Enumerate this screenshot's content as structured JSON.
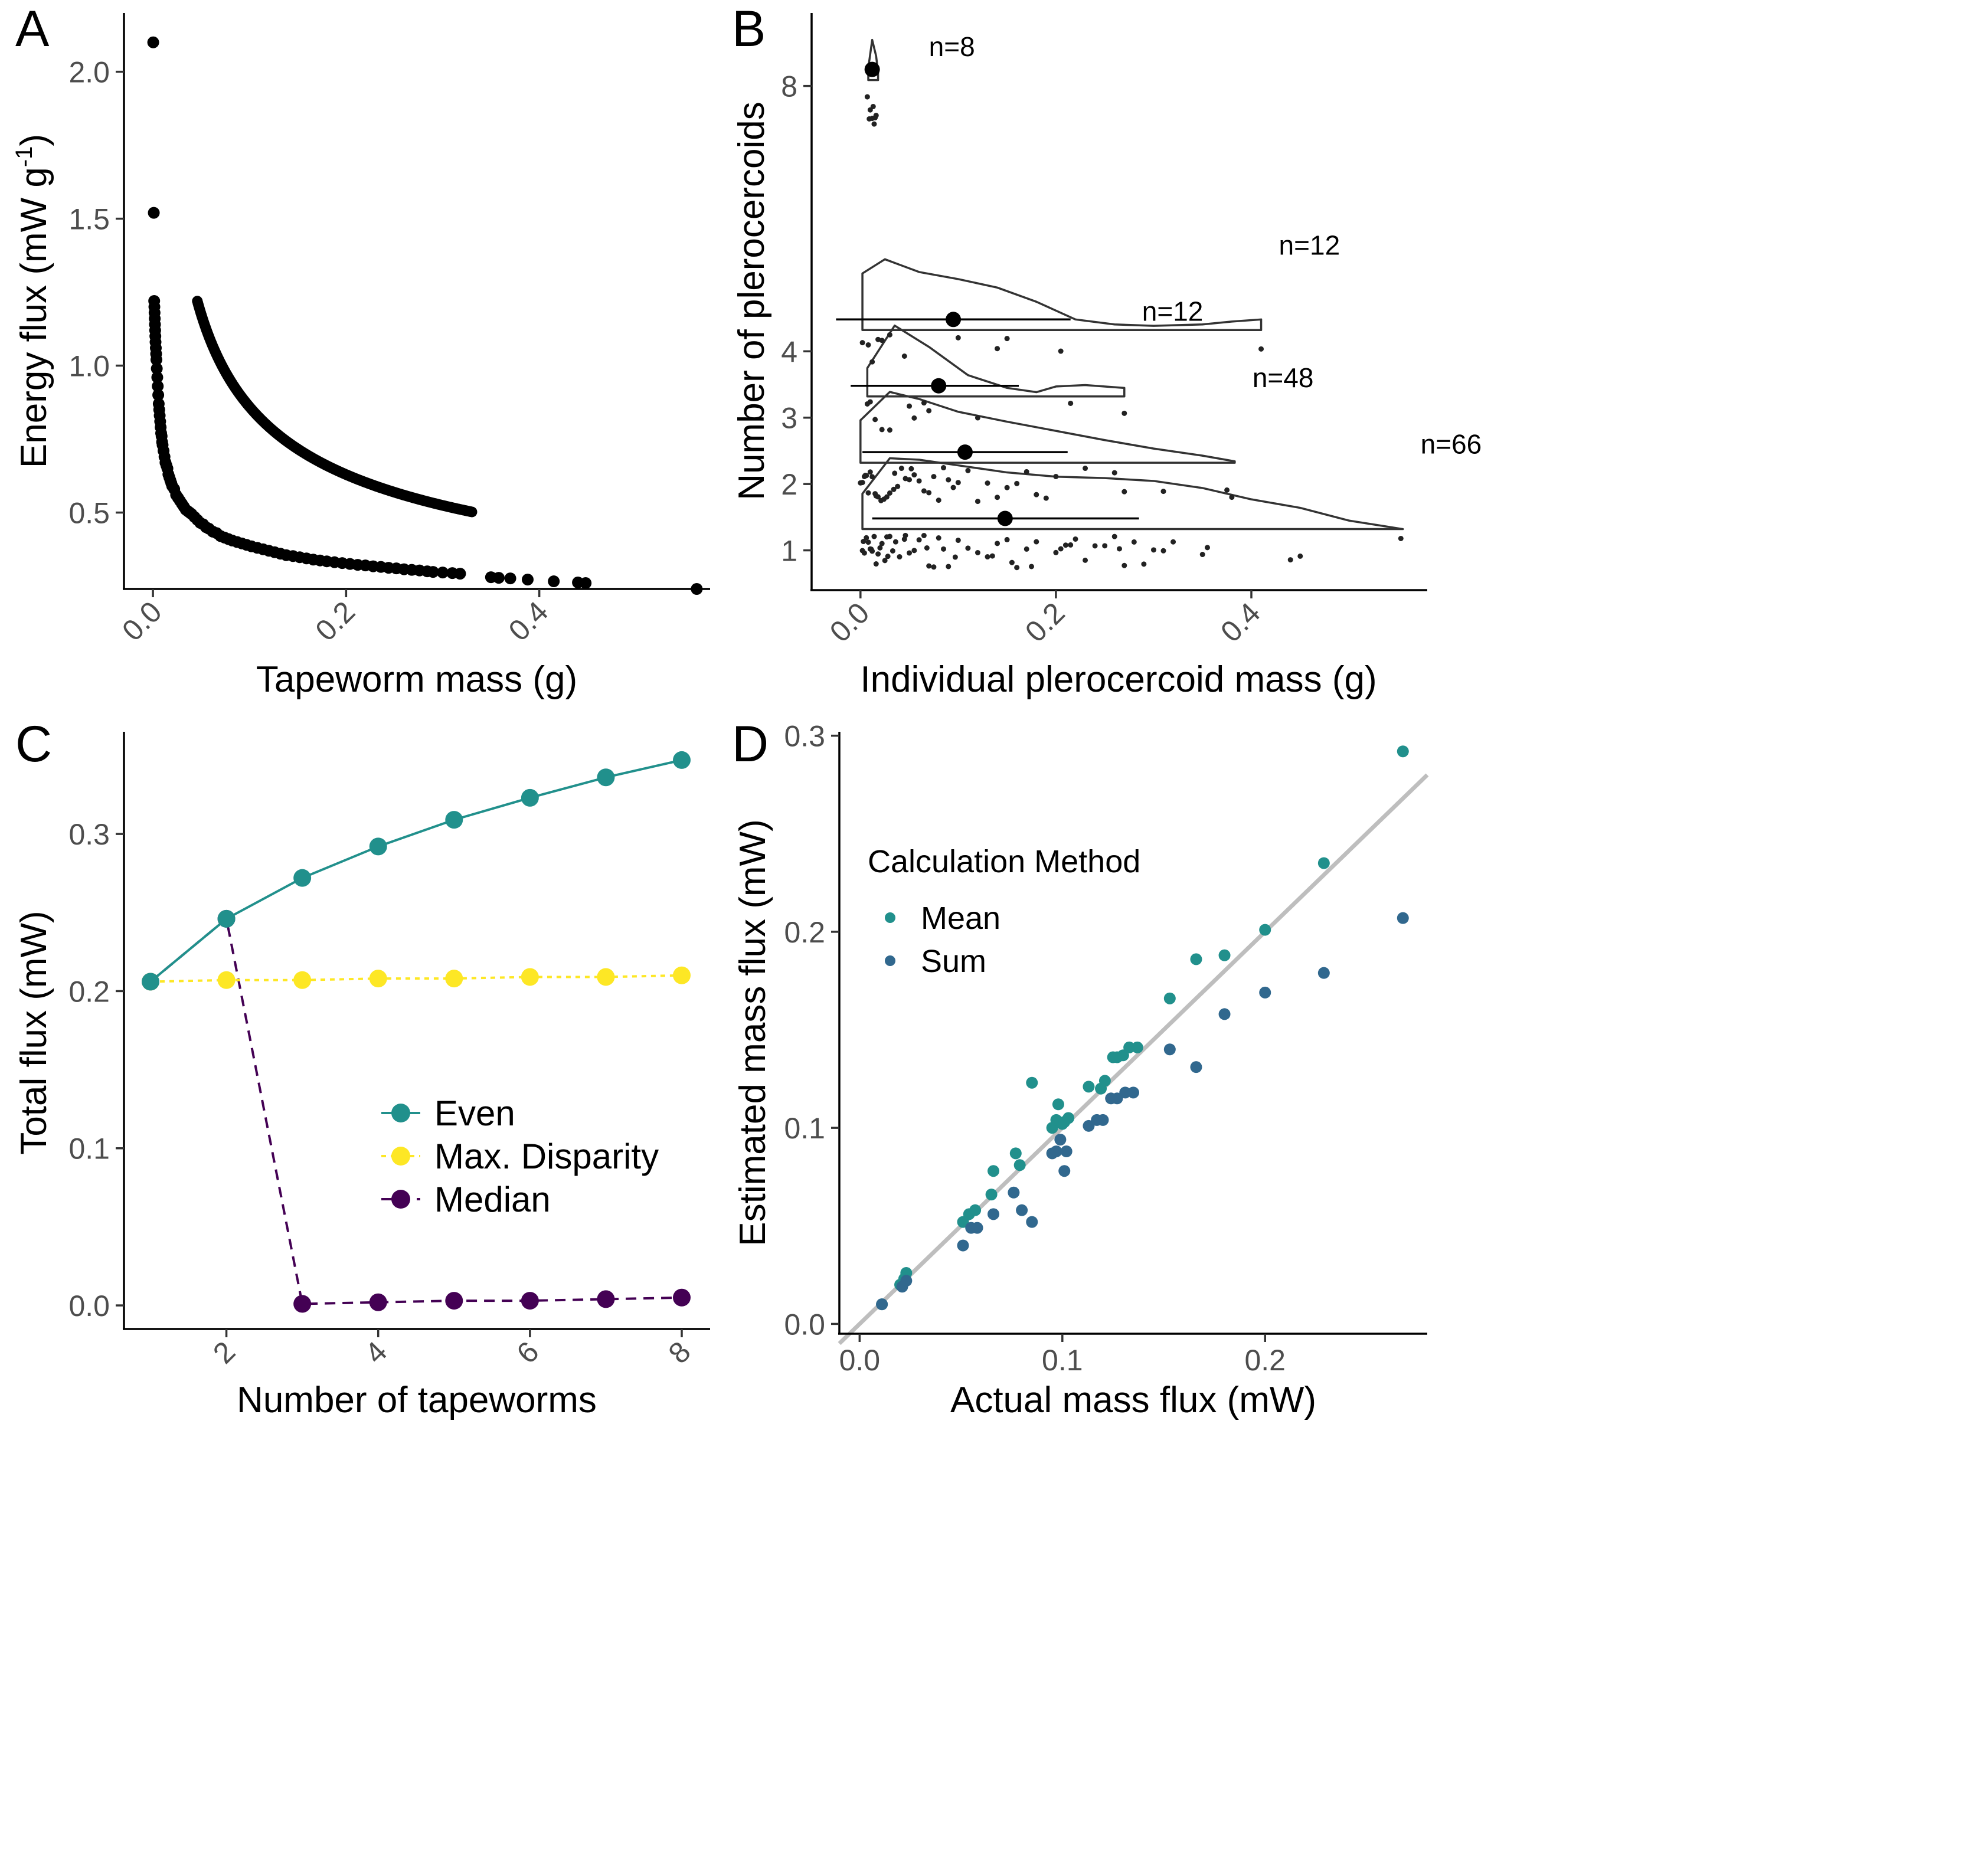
{
  "colors": {
    "even": "#21908C",
    "max_disparity": "#FDE725",
    "median": "#440154",
    "mean": "#21908C",
    "sum": "#31688E",
    "identity_line": "#BEBEBE",
    "points": "#000000"
  },
  "chart_data": [
    {
      "panel": "A",
      "type": "scatter",
      "xlabel": "Tapeworm mass (g)",
      "ylabel_main": "Energy flux (mW g",
      "ylabel_sup": "-1",
      "ylabel_end": ")",
      "xlim": [
        -0.03,
        0.575
      ],
      "ylim": [
        0.24,
        2.2
      ],
      "xticks": [
        0.0,
        0.2,
        0.4
      ],
      "xtick_labels": [
        "0.0",
        "0.2",
        "0.4"
      ],
      "yticks": [
        0.5,
        1.0,
        1.5,
        2.0
      ],
      "ytick_labels": [
        "0.5",
        "1.0",
        "1.5",
        "2.0"
      ],
      "model": {
        "a": 0.305,
        "b": -0.45,
        "relation": "y = a * x^b"
      },
      "x": [
        0.0003,
        0.0009,
        0.0013,
        0.0015,
        0.0017,
        0.0019,
        0.0021,
        0.0023,
        0.0025,
        0.0027,
        0.003,
        0.0033,
        0.0036,
        0.004,
        0.0045,
        0.005,
        0.0055,
        0.006,
        0.0065,
        0.007,
        0.0075,
        0.008,
        0.0085,
        0.009,
        0.0095,
        0.01,
        0.011,
        0.012,
        0.013,
        0.014,
        0.015,
        0.016,
        0.017,
        0.018,
        0.019,
        0.02,
        0.022,
        0.024,
        0.026,
        0.028,
        0.03,
        0.032,
        0.034,
        0.036,
        0.038,
        0.04,
        0.043,
        0.046,
        0.049,
        0.052,
        0.055,
        0.058,
        0.062,
        0.066,
        0.07,
        0.074,
        0.078,
        0.082,
        0.087,
        0.092,
        0.097,
        0.102,
        0.108,
        0.114,
        0.12,
        0.126,
        0.132,
        0.138,
        0.145,
        0.152,
        0.159,
        0.166,
        0.173,
        0.18,
        0.188,
        0.196,
        0.204,
        0.212,
        0.22,
        0.228,
        0.236,
        0.244,
        0.252,
        0.26,
        0.268,
        0.276,
        0.284,
        0.29,
        0.3,
        0.31,
        0.318,
        0.35,
        0.358,
        0.37,
        0.388,
        0.415,
        0.44,
        0.448,
        0.563
      ],
      "y": [
        2.1,
        1.52,
        1.22,
        1.2,
        1.18,
        1.16,
        1.14,
        1.12,
        1.1,
        1.08,
        1.06,
        1.04,
        1.02,
        0.99,
        0.96,
        0.93,
        0.9,
        0.87,
        0.85,
        0.83,
        0.81,
        0.79,
        0.77,
        0.76,
        0.74,
        0.73,
        0.71,
        0.69,
        0.67,
        0.66,
        0.65,
        0.63,
        0.62,
        0.61,
        0.6,
        0.59,
        0.58,
        0.56,
        0.55,
        0.54,
        0.53,
        0.52,
        0.51,
        0.505,
        0.5,
        0.495,
        0.485,
        0.475,
        0.465,
        0.46,
        0.45,
        0.445,
        0.435,
        0.43,
        0.42,
        0.415,
        0.41,
        0.405,
        0.4,
        0.395,
        0.39,
        0.385,
        0.38,
        0.375,
        0.37,
        0.365,
        0.36,
        0.355,
        0.352,
        0.348,
        0.344,
        0.34,
        0.337,
        0.334,
        0.331,
        0.328,
        0.325,
        0.322,
        0.32,
        0.317,
        0.315,
        0.312,
        0.31,
        0.307,
        0.305,
        0.303,
        0.3,
        0.298,
        0.296,
        0.294,
        0.292,
        0.28,
        0.278,
        0.276,
        0.272,
        0.266,
        0.262,
        0.26,
        0.24
      ]
    },
    {
      "panel": "B",
      "type": "raincloud",
      "xlabel": "Individual plerocercoid mass (g)",
      "ylabel": "Number of plerocercoids",
      "xlim": [
        -0.05,
        0.58
      ],
      "ylim": [
        0.4,
        9.1
      ],
      "xticks": [
        0.0,
        0.2,
        0.4
      ],
      "xtick_labels": [
        "0.0",
        "0.2",
        "0.4"
      ],
      "categories": [
        "1",
        "2",
        "3",
        "4",
        "8"
      ],
      "cat_positions": [
        1,
        2,
        3,
        4,
        8
      ],
      "groups": [
        {
          "y": 1,
          "n_label": "n=66",
          "mean": 0.148,
          "ci": [
            0.012,
            0.285
          ],
          "xmin": 0.002,
          "xmax": 0.555,
          "peak": 0.04,
          "density": [
            [
              0.002,
              0.5
            ],
            [
              0.03,
              1.0
            ],
            [
              0.06,
              0.98
            ],
            [
              0.1,
              0.9
            ],
            [
              0.15,
              0.8
            ],
            [
              0.2,
              0.74
            ],
            [
              0.25,
              0.72
            ],
            [
              0.3,
              0.68
            ],
            [
              0.35,
              0.58
            ],
            [
              0.4,
              0.42
            ],
            [
              0.45,
              0.3
            ],
            [
              0.5,
              0.12
            ],
            [
              0.555,
              0.0
            ]
          ],
          "points": [
            0.002,
            0.004,
            0.006,
            0.008,
            0.01,
            0.012,
            0.014,
            0.016,
            0.018,
            0.02,
            0.022,
            0.025,
            0.028,
            0.03,
            0.033,
            0.036,
            0.04,
            0.045,
            0.05,
            0.055,
            0.06,
            0.065,
            0.07,
            0.075,
            0.08,
            0.085,
            0.09,
            0.1,
            0.11,
            0.12,
            0.13,
            0.14,
            0.15,
            0.16,
            0.17,
            0.18,
            0.2,
            0.21,
            0.22,
            0.23,
            0.24,
            0.25,
            0.26,
            0.27,
            0.28,
            0.29,
            0.3,
            0.32,
            0.35,
            0.355,
            0.44,
            0.45,
            0.553,
            0.003,
            0.011,
            0.027,
            0.046,
            0.068,
            0.097,
            0.135,
            0.175,
            0.215,
            0.265,
            0.31,
            0.205,
            0.155
          ]
        },
        {
          "y": 2,
          "n_label": "n=48",
          "mean": 0.107,
          "ci": [
            0.002,
            0.212
          ],
          "xmin": 0.0,
          "xmax": 0.383,
          "peak": 0.03,
          "density": [
            [
              0.0,
              0.6
            ],
            [
              0.03,
              1.0
            ],
            [
              0.06,
              0.9
            ],
            [
              0.1,
              0.72
            ],
            [
              0.15,
              0.58
            ],
            [
              0.2,
              0.45
            ],
            [
              0.25,
              0.32
            ],
            [
              0.3,
              0.2
            ],
            [
              0.35,
              0.1
            ],
            [
              0.383,
              0.02
            ]
          ],
          "points": [
            0.0,
            0.002,
            0.004,
            0.006,
            0.008,
            0.01,
            0.012,
            0.015,
            0.018,
            0.021,
            0.024,
            0.027,
            0.03,
            0.034,
            0.038,
            0.042,
            0.046,
            0.05,
            0.055,
            0.06,
            0.065,
            0.07,
            0.075,
            0.08,
            0.085,
            0.09,
            0.095,
            0.1,
            0.11,
            0.12,
            0.13,
            0.14,
            0.15,
            0.16,
            0.17,
            0.18,
            0.19,
            0.2,
            0.23,
            0.26,
            0.27,
            0.31,
            0.375,
            0.38,
            0.005,
            0.016,
            0.035,
            0.052
          ]
        },
        {
          "y": 3,
          "n_label": "n=12",
          "mean": 0.08,
          "ci": [
            -0.01,
            0.162
          ],
          "xmin": 0.007,
          "xmax": 0.27,
          "peak": 0.035,
          "density": [
            [
              0.007,
              0.4
            ],
            [
              0.035,
              1.0
            ],
            [
              0.07,
              0.7
            ],
            [
              0.11,
              0.3
            ],
            [
              0.15,
              0.12
            ],
            [
              0.18,
              0.06
            ],
            [
              0.2,
              0.14
            ],
            [
              0.23,
              0.16
            ],
            [
              0.27,
              0.12
            ]
          ],
          "points": [
            0.007,
            0.01,
            0.015,
            0.022,
            0.03,
            0.05,
            0.055,
            0.065,
            0.07,
            0.12,
            0.215,
            0.27
          ]
        },
        {
          "y": 4,
          "n_label": "n=12",
          "mean": 0.095,
          "ci": [
            -0.025,
            0.215
          ],
          "xmin": 0.002,
          "xmax": 0.41,
          "peak": 0.025,
          "density": [
            [
              0.002,
              0.8
            ],
            [
              0.025,
              1.0
            ],
            [
              0.06,
              0.82
            ],
            [
              0.1,
              0.72
            ],
            [
              0.14,
              0.6
            ],
            [
              0.18,
              0.4
            ],
            [
              0.22,
              0.15
            ],
            [
              0.26,
              0.08
            ],
            [
              0.3,
              0.06
            ],
            [
              0.35,
              0.08
            ],
            [
              0.38,
              0.12
            ],
            [
              0.41,
              0.15
            ]
          ],
          "points": [
            0.002,
            0.008,
            0.012,
            0.018,
            0.022,
            0.03,
            0.045,
            0.1,
            0.14,
            0.15,
            0.205,
            0.41
          ]
        },
        {
          "y": 8,
          "n_label": "n=8",
          "mean": 0.012,
          "ci": [
            0.012,
            0.012
          ],
          "xmin": 0.008,
          "xmax": 0.018,
          "peak": 0.014,
          "density": [
            [
              0.008,
              0.3
            ],
            [
              0.012,
              1.0
            ],
            [
              0.016,
              0.6
            ],
            [
              0.018,
              0.2
            ]
          ],
          "points": [
            0.007,
            0.009,
            0.01,
            0.012,
            0.013,
            0.014,
            0.015,
            0.016
          ]
        }
      ]
    },
    {
      "panel": "C",
      "type": "line",
      "xlabel": "Number of tapeworms",
      "ylabel": "Total flux (mW)",
      "xlim": [
        0.65,
        8.35
      ],
      "ylim": [
        -0.015,
        0.365
      ],
      "xticks": [
        2,
        4,
        6,
        8
      ],
      "xtick_labels": [
        "2",
        "4",
        "6",
        "8"
      ],
      "yticks": [
        0.0,
        0.1,
        0.2,
        0.3
      ],
      "ytick_labels": [
        "0.0",
        "0.1",
        "0.2",
        "0.3"
      ],
      "x": [
        1,
        2,
        3,
        4,
        5,
        6,
        7,
        8
      ],
      "legend_position": "right",
      "series": [
        {
          "name": "Even",
          "color_key": "even",
          "dash": "solid",
          "values": [
            0.206,
            0.246,
            0.272,
            0.292,
            0.309,
            0.323,
            0.336,
            0.347
          ]
        },
        {
          "name": "Max. Disparity",
          "color_key": "max_disparity",
          "dash": "dotted",
          "values": [
            0.206,
            0.207,
            0.207,
            0.208,
            0.208,
            0.209,
            0.209,
            0.21
          ]
        },
        {
          "name": "Median",
          "color_key": "median",
          "dash": "dashed",
          "values": [
            0.206,
            0.246,
            0.001,
            0.002,
            0.003,
            0.003,
            0.004,
            0.005
          ]
        }
      ]
    },
    {
      "panel": "D",
      "type": "scatter",
      "xlabel": "Actual mass flux (mW)",
      "ylabel": "Estimated mass flux (mW)",
      "xlim": [
        -0.01,
        0.28
      ],
      "ylim": [
        -0.005,
        0.302
      ],
      "xticks": [
        0.0,
        0.1,
        0.2
      ],
      "xtick_labels": [
        "0.0",
        "0.1",
        "0.2"
      ],
      "yticks": [
        0.0,
        0.1,
        0.2,
        0.3
      ],
      "ytick_labels": [
        "0.0",
        "0.1",
        "0.2",
        "0.3"
      ],
      "legend_title": "Calculation Method",
      "legend_position": "top-left",
      "identity_line": true,
      "series": [
        {
          "name": "Mean",
          "color_key": "mean",
          "x": [
            0.011,
            0.02,
            0.022,
            0.023,
            0.051,
            0.054,
            0.057,
            0.065,
            0.066,
            0.077,
            0.079,
            0.085,
            0.095,
            0.097,
            0.098,
            0.1,
            0.101,
            0.103,
            0.113,
            0.119,
            0.121,
            0.125,
            0.127,
            0.13,
            0.133,
            0.137,
            0.153,
            0.166,
            0.18,
            0.2,
            0.229,
            0.268
          ],
          "y": [
            0.01,
            0.02,
            0.023,
            0.026,
            0.052,
            0.056,
            0.058,
            0.066,
            0.078,
            0.087,
            0.081,
            0.123,
            0.1,
            0.104,
            0.112,
            0.102,
            0.103,
            0.105,
            0.121,
            0.12,
            0.124,
            0.136,
            0.136,
            0.137,
            0.141,
            0.141,
            0.166,
            0.186,
            0.188,
            0.201,
            0.235,
            0.292
          ]
        },
        {
          "name": "Sum",
          "color_key": "sum",
          "x": [
            0.011,
            0.021,
            0.023,
            0.051,
            0.055,
            0.058,
            0.066,
            0.076,
            0.08,
            0.085,
            0.095,
            0.097,
            0.099,
            0.101,
            0.102,
            0.113,
            0.117,
            0.12,
            0.124,
            0.127,
            0.131,
            0.135,
            0.153,
            0.166,
            0.18,
            0.2,
            0.229,
            0.268
          ],
          "y": [
            0.01,
            0.019,
            0.022,
            0.04,
            0.049,
            0.049,
            0.056,
            0.067,
            0.058,
            0.052,
            0.087,
            0.088,
            0.094,
            0.078,
            0.088,
            0.101,
            0.104,
            0.104,
            0.115,
            0.115,
            0.118,
            0.118,
            0.14,
            0.131,
            0.158,
            0.169,
            0.179,
            0.207
          ]
        }
      ]
    }
  ]
}
